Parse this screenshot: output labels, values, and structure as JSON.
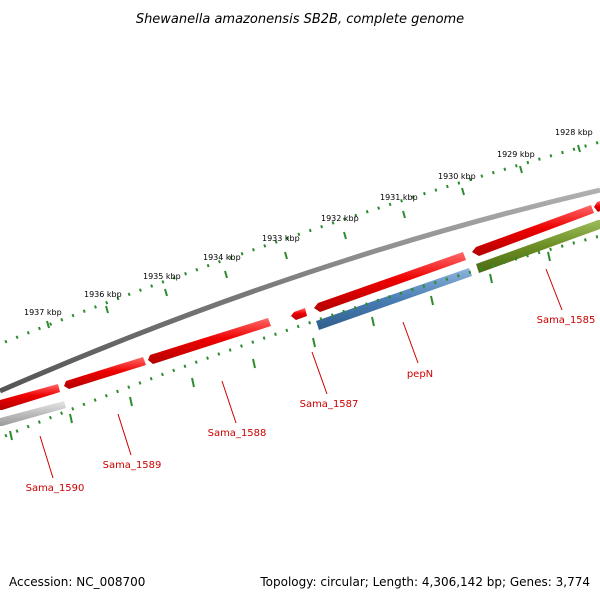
{
  "title": "Shewanella amazonensis SB2B, complete genome",
  "accession": "Accession: NC_008700",
  "summary": "Topology: circular; Length: 4,306,142 bp; Genes: 3,774",
  "colors": {
    "backbone": "#7a7a7a",
    "forward_gene": "#e60000",
    "blue_gene": "#4a7fb5",
    "green_gene": "#6b8e23",
    "grey_gene": "#bdbdbd",
    "tick": "#2e8b2e",
    "label": "#cc0000"
  },
  "scale_labels": [
    "1937 kbp",
    "1936 kbp",
    "1935 kbp",
    "1934 kbp",
    "1933 kbp",
    "1932 kbp",
    "1931 kbp",
    "1930 kbp",
    "1929 kbp",
    "1928 kbp"
  ],
  "gene_labels": [
    "Sama_1590",
    "Sama_1589",
    "Sama_1588",
    "Sama_1587",
    "pepN",
    "Sama_1585"
  ]
}
